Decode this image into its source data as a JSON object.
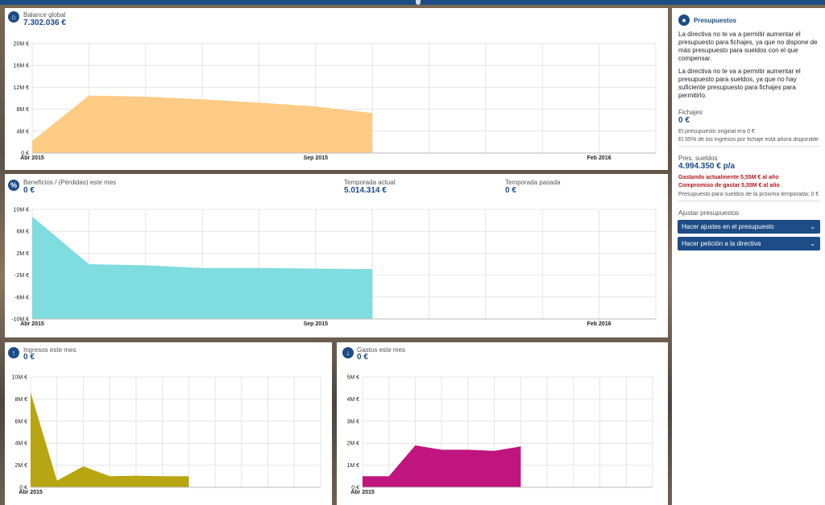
{
  "colors": {
    "brand": "#1d4c86",
    "orange": "#ffcb85",
    "cyan": "#7fdcdf",
    "olive": "#b8a512",
    "magenta": "#c0157f",
    "red": "#b3191e"
  },
  "balance": {
    "icon": "piggy-bank-icon",
    "title": "Balance global",
    "value": "7.302.036 €",
    "chart_data": {
      "type": "area",
      "title": "Balance global",
      "y_ticks": [
        "20M €",
        "16M €",
        "12M €",
        "8M €",
        "4M €",
        "0 €"
      ],
      "ylim": [
        0,
        20000000
      ],
      "x_labels": [
        "Abr 2015",
        "Sep 2015",
        "Feb 2016"
      ],
      "x_label_index": [
        0,
        5,
        10
      ],
      "x_count": 12,
      "values": [
        2200000,
        10500000,
        10300000,
        9800000,
        9200000,
        8500000,
        7300000
      ]
    }
  },
  "beneficios": {
    "icon": "percent-icon",
    "title": "Beneficios / (Pérdidas) este mes",
    "value": "0 €",
    "season_label": "Temporada actual",
    "season_value": "5.014.314 €",
    "past_label": "Temporada pasada",
    "past_value": "0 €",
    "chart_data": {
      "type": "area",
      "title": "Beneficios / (Pérdidas) este mes",
      "y_ticks": [
        "10M €",
        "6M €",
        "2M €",
        "-2M €",
        "-6M €",
        "-10M €"
      ],
      "ylim": [
        -10000000,
        10000000
      ],
      "baseline": -10000000,
      "x_labels": [
        "Abr 2015",
        "Sep 2015",
        "Feb 2016"
      ],
      "x_label_index": [
        0,
        5,
        10
      ],
      "x_count": 12,
      "values": [
        8700000,
        0,
        -200000,
        -700000,
        -700000,
        -800000,
        -900000
      ]
    }
  },
  "ingresos": {
    "icon": "arrow-up-icon",
    "title": "Ingresos este mes",
    "value": "0 €",
    "chart_data": {
      "type": "area",
      "title": "Ingresos este mes",
      "y_ticks": [
        "10M €",
        "8M €",
        "6M €",
        "4M €",
        "2M €",
        "0 €"
      ],
      "ylim": [
        0,
        10000000
      ],
      "x_labels": [
        "Abr 2015"
      ],
      "x_label_index": [
        0
      ],
      "x_count": 12,
      "values": [
        8600000,
        600000,
        1900000,
        1000000,
        1050000,
        1000000,
        1000000
      ]
    }
  },
  "gastos": {
    "icon": "arrow-down-icon",
    "title": "Gastos este mes",
    "value": "0 €",
    "chart_data": {
      "type": "area",
      "title": "Gastos este mes",
      "y_ticks": [
        "5M €",
        "4M €",
        "3M €",
        "2M €",
        "1M €",
        "0 €"
      ],
      "ylim": [
        0,
        5000000
      ],
      "x_labels": [
        "Abr 2015"
      ],
      "x_label_index": [
        0
      ],
      "x_count": 12,
      "values": [
        500000,
        500000,
        1900000,
        1700000,
        1700000,
        1650000,
        1850000
      ]
    }
  },
  "side": {
    "icon": "chat-bubble-icon",
    "title": "Presupuestos",
    "msg1": "La directiva no te va a permitir aumentar el presupuesto para fichajes, ya que no dispone de más presupuesto para sueldos con el que compensar.",
    "msg2": "La directiva no te va a permitir aumentar el presupuesto para sueldos, ya que no hay suficiente presupuesto para fichajes para permitirlo.",
    "fichajes_label": "Fichajes",
    "fichajes_value": "0 €",
    "fichajes_note1": "El presupuesto original era 0 €",
    "fichajes_note2": "El 55% de los ingresos por fichaje está ahora disponible",
    "sueldos_label": "Pres. sueldos",
    "sueldos_value": "4.994.350 € p/a",
    "sueldos_red1": "Gastando actualmente 5,55M € al año",
    "sueldos_red2": "Compromiso de gastar 5,55M € al año",
    "sueldos_note": "Presupuesto para sueldos de la próxima temporada: 0 €",
    "adjust_label": "Ajustar presupuestos",
    "btn1": "Hacer ajustes en el presupuesto",
    "btn2": "Hacer petición a la directiva"
  }
}
